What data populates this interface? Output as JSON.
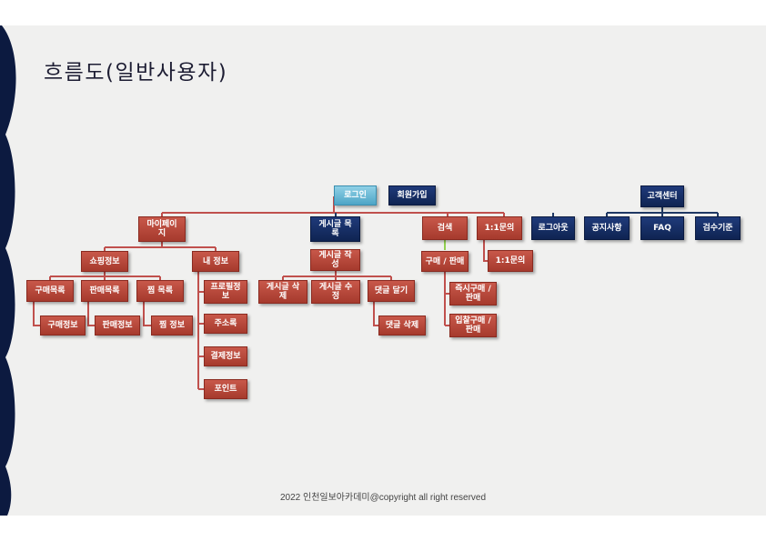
{
  "title": "흐름도(일반사용자)",
  "footer": "2022 인천일보아카데미@copyright all right reserved",
  "colors": {
    "red_box": "#b5473a",
    "navy_box": "#14306a",
    "teal_box": "#62b4d4",
    "red_line": "#c0504d",
    "navy_line": "#1f3864",
    "green_line": "#92d050",
    "background": "#f0f0ef",
    "wave": "#0c1a40"
  },
  "nodes": {
    "login": "로그인",
    "signup": "회원가입",
    "customer_center": "고객센터",
    "mypage": "마이페이\n지",
    "post_list": "게시글 목\n록",
    "search": "검색",
    "inquiry": "1:1문의",
    "logout": "로그아웃",
    "notice": "공지사항",
    "faq": "FAQ",
    "inspection": "검수기준",
    "shopping_info": "쇼핑정보",
    "my_info": "내 정보",
    "post_write": "게시글 작\n성",
    "buy_sell": "구매 / 판매",
    "inquiry_sub": "1:1문의",
    "buy_list": "구매목록",
    "sell_list": "판매목록",
    "wish_list": "찜 목록",
    "profile": "프로필정\n보",
    "address": "주소록",
    "payment": "결제정보",
    "point": "포인트",
    "post_delete": "게시글 삭\n제",
    "post_edit": "게시글 수\n정",
    "comment_write": "댓글 달기",
    "instant_trade": "즉시구매 /\n판매",
    "bid_trade": "입찰구매 /\n판매",
    "buy_info": "구매정보",
    "sell_info": "판매정보",
    "wish_info": "찜 정보",
    "comment_delete": "댓글 삭제"
  }
}
